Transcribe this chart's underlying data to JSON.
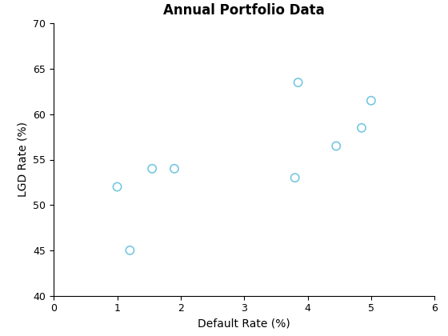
{
  "title": "Annual Portfolio Data",
  "xlabel": "Default Rate (%)",
  "ylabel": "LGD Rate (%)",
  "x": [
    1.0,
    1.2,
    1.55,
    1.9,
    3.8,
    3.85,
    4.45,
    4.85,
    5.0
  ],
  "y": [
    52.0,
    45.0,
    54.0,
    54.0,
    53.0,
    63.5,
    56.5,
    58.5,
    61.5
  ],
  "xlim": [
    0,
    6
  ],
  "ylim": [
    40,
    70
  ],
  "xticks": [
    0,
    1,
    2,
    3,
    4,
    5,
    6
  ],
  "yticks": [
    40,
    45,
    50,
    55,
    60,
    65,
    70
  ],
  "marker_color": "#77C8E0",
  "marker_size": 55,
  "marker_facecolor": "none",
  "marker_linewidth": 1.2,
  "title_fontsize": 12,
  "label_fontsize": 10,
  "tick_fontsize": 9,
  "background_color": "#ffffff"
}
